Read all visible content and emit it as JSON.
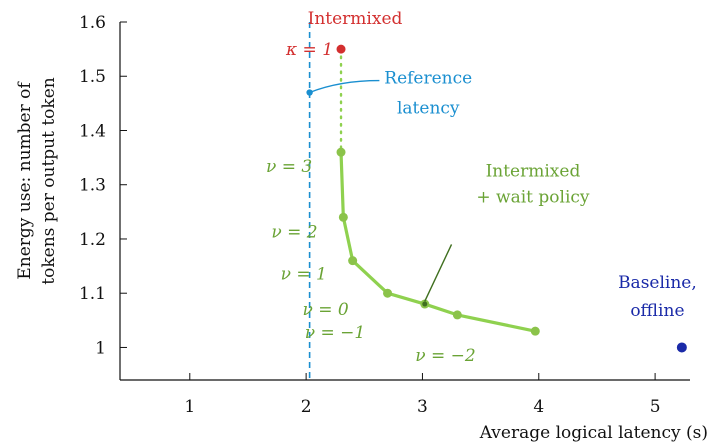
{
  "chart_data": {
    "type": "line",
    "xlabel": "Average logical latency (s)",
    "ylabel": [
      "Energy use: number of",
      "tokens per output token"
    ],
    "xlim": [
      0.4,
      5.3
    ],
    "ylim": [
      0.94,
      1.6
    ],
    "xticks": [
      1,
      2,
      3,
      4,
      5
    ],
    "yticks": [
      1,
      1.1,
      1.2,
      1.3,
      1.4,
      1.5,
      1.6
    ],
    "ytick_labels": [
      "1",
      "1.1",
      "1.2",
      "1.3",
      "1.4",
      "1.5",
      "1.6"
    ],
    "grid": false,
    "colors": {
      "wait_policy": "#8bc34a",
      "wait_policy_line": "#8fd14f",
      "wait_policy_text": "#6aa335",
      "intermixed": "#d32f2f",
      "reference": "#1a8fd0",
      "baseline": "#1a2aa8"
    },
    "series": [
      {
        "name": "Intermixed + wait policy",
        "x": [
          2.3,
          2.32,
          2.4,
          2.7,
          3.02,
          3.3,
          3.97
        ],
        "y": [
          1.36,
          1.24,
          1.16,
          1.1,
          1.08,
          1.06,
          1.03
        ],
        "point_labels": [
          "ν = 3",
          "ν = 2",
          "ν = 1",
          "ν = 0",
          "ν = −1",
          "",
          "ν = −2"
        ]
      }
    ],
    "dotted_link": {
      "x": [
        2.3,
        2.3
      ],
      "y": [
        1.55,
        1.36
      ]
    },
    "points": {
      "intermixed": {
        "x": 2.3,
        "y": 1.55,
        "label": "Intermixed",
        "point_label": "κ = 1"
      },
      "reference": {
        "x": 2.03,
        "y": 1.47,
        "label": [
          "Reference",
          "latency"
        ]
      },
      "baseline": {
        "x": 5.23,
        "y": 1.0,
        "label": [
          "Baseline,",
          "offline"
        ]
      }
    },
    "reference_line_x": 2.03,
    "wait_policy_label": [
      "Intermixed",
      "+ wait policy"
    ]
  }
}
